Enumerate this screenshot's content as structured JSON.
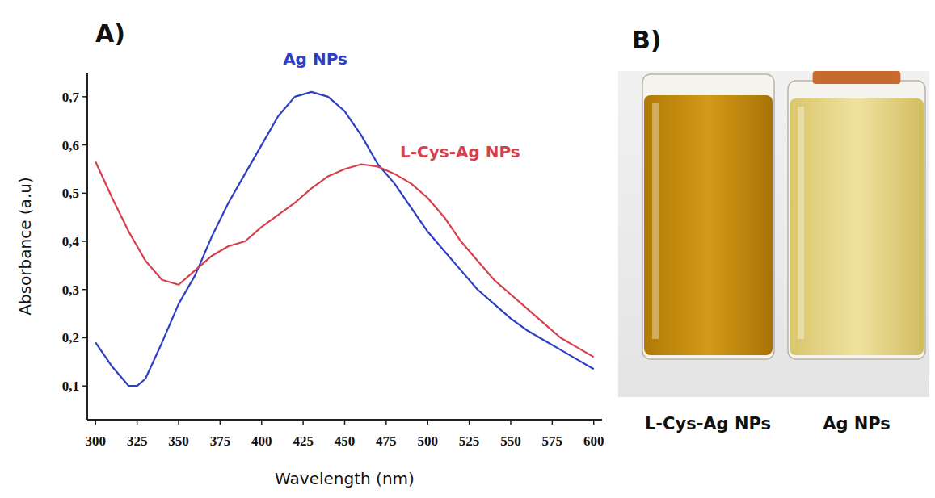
{
  "chart_data": {
    "type": "line",
    "title": "A)",
    "x_label": "Wavelength (nm)",
    "y_label": "Absorbance (a.u)",
    "x": [
      300,
      310,
      320,
      325,
      330,
      340,
      350,
      360,
      370,
      380,
      390,
      400,
      410,
      420,
      430,
      440,
      450,
      460,
      470,
      480,
      490,
      500,
      510,
      520,
      530,
      540,
      550,
      560,
      570,
      580,
      590,
      600
    ],
    "series": [
      {
        "name": "Ag NPs",
        "color": "#2f3fc4",
        "values": [
          0.19,
          0.14,
          0.1,
          0.1,
          0.115,
          0.19,
          0.27,
          0.33,
          0.41,
          0.48,
          0.54,
          0.6,
          0.66,
          0.7,
          0.71,
          0.7,
          0.67,
          0.62,
          0.56,
          0.52,
          0.47,
          0.42,
          0.38,
          0.34,
          0.3,
          0.27,
          0.24,
          0.215,
          0.195,
          0.175,
          0.155,
          0.135
        ]
      },
      {
        "name": "L-Cys-Ag NPs",
        "color": "#d6404e",
        "values": [
          0.565,
          0.49,
          0.42,
          0.39,
          0.36,
          0.32,
          0.31,
          0.34,
          0.37,
          0.39,
          0.4,
          0.43,
          0.455,
          0.48,
          0.51,
          0.535,
          0.55,
          0.56,
          0.555,
          0.54,
          0.52,
          0.49,
          0.45,
          0.4,
          0.36,
          0.32,
          0.29,
          0.26,
          0.23,
          0.2,
          0.18,
          0.16
        ]
      }
    ],
    "xlim": [
      295,
      605
    ],
    "ylim": [
      0.03,
      0.75
    ],
    "xticks": [
      300,
      325,
      350,
      375,
      400,
      425,
      450,
      475,
      500,
      525,
      550,
      575,
      600
    ],
    "yticks": [
      {
        "value": 0.1,
        "label": "0,1"
      },
      {
        "value": 0.2,
        "label": "0,2"
      },
      {
        "value": 0.3,
        "label": "0,3"
      },
      {
        "value": 0.4,
        "label": "0,4"
      },
      {
        "value": 0.5,
        "label": "0,5"
      },
      {
        "value": 0.6,
        "label": "0,6"
      },
      {
        "value": 0.7,
        "label": "0,7"
      }
    ],
    "grid": false
  },
  "photo": {
    "letter": "B)",
    "labels": [
      "L-Cys-Ag NPs",
      "Ag NPs"
    ]
  }
}
